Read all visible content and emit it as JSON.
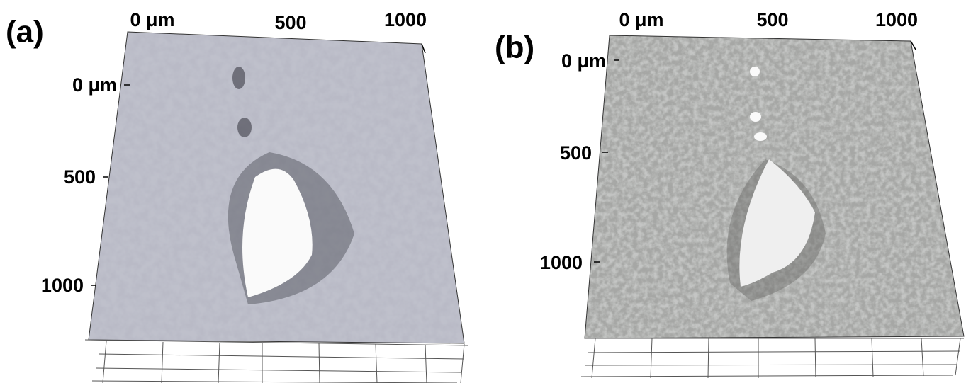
{
  "panels": [
    {
      "label": "(a)",
      "x_ticks": [
        "0 μm",
        "500",
        "1000"
      ],
      "y_ticks": [
        "0 μm",
        "500",
        "1000"
      ]
    },
    {
      "label": "(b)",
      "x_ticks": [
        "0 μm",
        "500",
        "1000"
      ],
      "y_ticks": [
        "0 μm",
        "500",
        "1000"
      ]
    }
  ]
}
